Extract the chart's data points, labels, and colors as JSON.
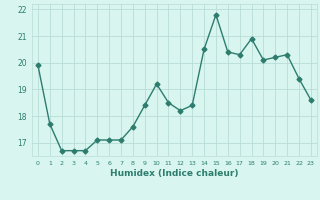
{
  "x": [
    0,
    1,
    2,
    3,
    4,
    5,
    6,
    7,
    8,
    9,
    10,
    11,
    12,
    13,
    14,
    15,
    16,
    17,
    18,
    19,
    20,
    21,
    22,
    23
  ],
  "y": [
    19.9,
    17.7,
    16.7,
    16.7,
    16.7,
    17.1,
    17.1,
    17.1,
    17.6,
    18.4,
    19.2,
    18.5,
    18.2,
    18.4,
    20.5,
    21.8,
    20.4,
    20.3,
    20.9,
    20.1,
    20.2,
    20.3,
    19.4,
    18.6
  ],
  "line_color": "#2d7d6e",
  "marker": "D",
  "markersize": 2.5,
  "linewidth": 1.0,
  "bg_color": "#d8f5ef",
  "grid_color": "#b8ddd6",
  "xlabel": "Humidex (Indice chaleur)",
  "xlim": [
    -0.5,
    23.5
  ],
  "ylim": [
    16.5,
    22.2
  ],
  "yticks": [
    17,
    18,
    19,
    20,
    21,
    22
  ],
  "xticks": [
    0,
    1,
    2,
    3,
    4,
    5,
    6,
    7,
    8,
    9,
    10,
    11,
    12,
    13,
    14,
    15,
    16,
    17,
    18,
    19,
    20,
    21,
    22,
    23
  ]
}
